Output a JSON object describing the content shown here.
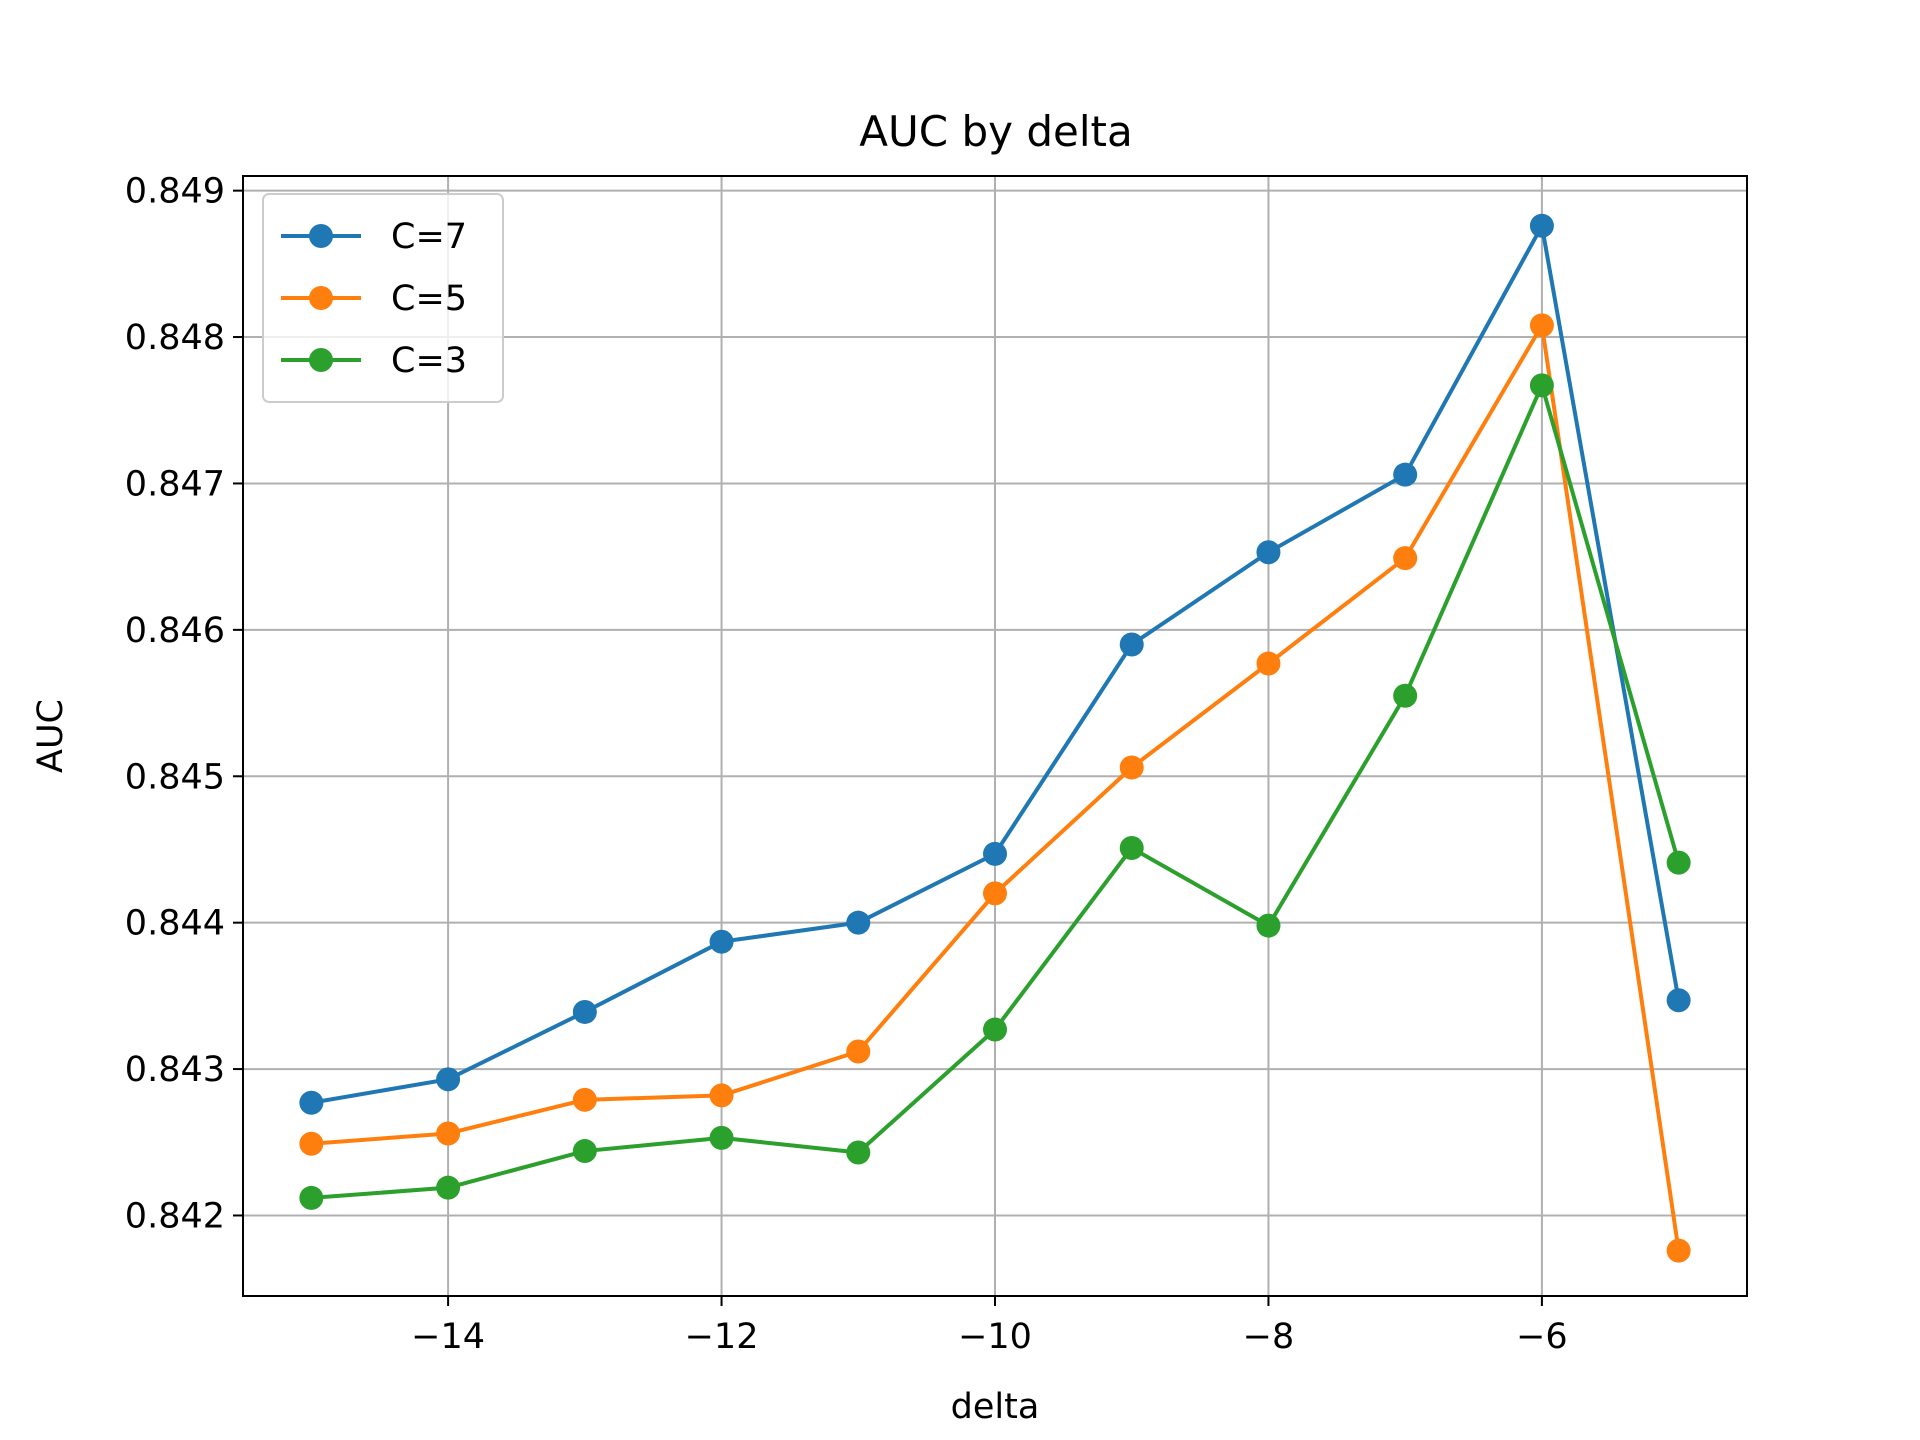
{
  "chart_data": {
    "type": "line",
    "title": "AUC by delta",
    "xlabel": "delta",
    "ylabel": "AUC",
    "x": [
      -15,
      -14,
      -13,
      -12,
      -11,
      -10,
      -9,
      -8,
      -7,
      -6,
      -5
    ],
    "xlim": [
      -15.5,
      -4.5
    ],
    "ylim": [
      0.84145,
      0.8491
    ],
    "xticks": [
      -14,
      -12,
      -10,
      -8,
      -6
    ],
    "xtick_labels": [
      "−14",
      "−12",
      "−10",
      "−8",
      "−6"
    ],
    "yticks": [
      0.842,
      0.843,
      0.844,
      0.845,
      0.846,
      0.847,
      0.848,
      0.849
    ],
    "ytick_labels": [
      "0.842",
      "0.843",
      "0.844",
      "0.845",
      "0.846",
      "0.847",
      "0.848",
      "0.849"
    ],
    "grid": true,
    "legend_position": "top-left",
    "series": [
      {
        "name": "C=7",
        "color": "#1f77b4",
        "values": [
          0.84277,
          0.84293,
          0.84339,
          0.84387,
          0.844,
          0.84447,
          0.8459,
          0.84653,
          0.84706,
          0.84876,
          0.84347
        ]
      },
      {
        "name": "C=5",
        "color": "#ff7f0e",
        "values": [
          0.84249,
          0.84256,
          0.84279,
          0.84282,
          0.84312,
          0.8442,
          0.84506,
          0.84577,
          0.84649,
          0.84808,
          0.84176
        ]
      },
      {
        "name": "C=3",
        "color": "#2ca02c",
        "values": [
          0.84212,
          0.84219,
          0.84244,
          0.84253,
          0.84243,
          0.84327,
          0.84451,
          0.84398,
          0.84555,
          0.84767,
          0.84441
        ]
      }
    ]
  }
}
